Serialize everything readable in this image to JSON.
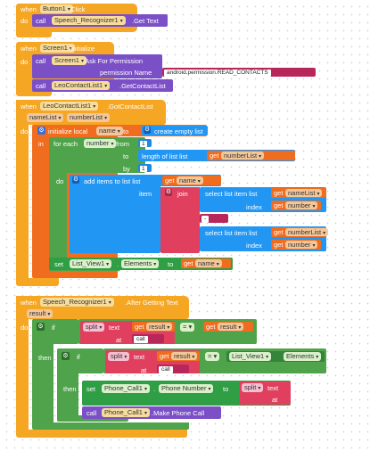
{
  "blocks": {
    "button_click": {
      "when": "when",
      "component": "Button1",
      "event": ".Click",
      "do": "do",
      "call": "call",
      "target": "Speech_Recognizer1",
      "method": ".Get Text"
    },
    "screen_init": {
      "when": "when",
      "component": "Screen1",
      "event": ".Initialize",
      "do": "do",
      "call1": "call",
      "target1": "Screen1",
      "method1": ".Ask For Permission",
      "param_label": "permission Name",
      "permission_value": "android.permission.READ_CONTACTS",
      "call2": "call",
      "target2": "LeoContactList1",
      "method2": ".GetContactList"
    },
    "got_contacts": {
      "when": "when",
      "component": "LeoContactList1",
      "event": ".GotContactList",
      "params": [
        "nameList",
        "numberList"
      ],
      "do": "do",
      "init_local": "initialize local",
      "local_name": "name",
      "to": "to",
      "create_empty": "create empty list",
      "in": "in",
      "for_each": "for each",
      "var_number": "number",
      "from": "from",
      "from_val": "1",
      "to2": "to",
      "length_of_list": "length of list  list",
      "get": "get",
      "numberList": "numberList",
      "by": "by",
      "by_val": "1",
      "do2": "do",
      "add_items": "add items to list  list",
      "get_name": "name",
      "item": "item",
      "join": "join",
      "select_item": "select list item  list",
      "nameList": "nameList",
      "index": "index",
      "get_number": "number",
      "separator": "-",
      "set": "set",
      "list_view": "List_View1",
      "elements": "Elements",
      "set_to": "to",
      "set_get_name": "name"
    },
    "after_text": {
      "when": "when",
      "component": "Speech_Recognizer1",
      "event": ".After Getting Text",
      "param": "result",
      "do": "do",
      "if": "if",
      "split": "split",
      "text": "text",
      "get": "get",
      "result": "result",
      "at": "at",
      "call_str": "call",
      "then": "then",
      "if2": "if",
      "list_view": "List_View1",
      "elements": "Elements",
      "then2": "then",
      "set": "set",
      "phone": "Phone_Call1",
      "phone_prop": "Phone Number",
      "to": "to",
      "call3": "call",
      "make_call": ".Make Phone Call"
    }
  },
  "colors": {
    "event": "#f5a623",
    "component": "#7b50c7",
    "local": "#f06c1f",
    "list": "#2196f3",
    "text": "#e04871",
    "control": "#4fa34a"
  },
  "icons": [
    "gear-icon",
    "dropdown-arrow-icon"
  ]
}
